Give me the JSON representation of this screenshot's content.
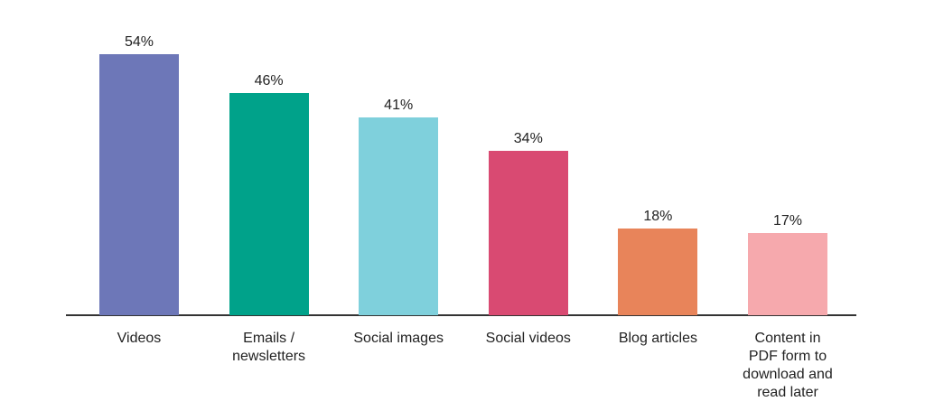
{
  "chart_data": {
    "type": "bar",
    "categories": [
      "Videos",
      "Emails / newsletters",
      "Social images",
      "Social videos",
      "Blog articles",
      "Content in PDF form to download and read later"
    ],
    "values": [
      54,
      46,
      41,
      34,
      18,
      17
    ],
    "value_labels": [
      "54%",
      "46%",
      "41%",
      "34%",
      "18%",
      "17%"
    ],
    "colors": [
      "#6d77b8",
      "#00a28a",
      "#7fd0dc",
      "#d94a72",
      "#e8845a",
      "#f6a9ad"
    ]
  }
}
